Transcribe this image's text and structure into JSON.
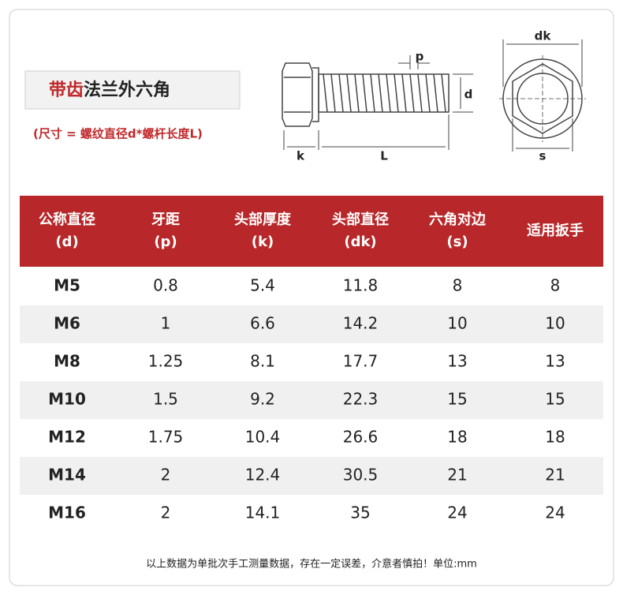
{
  "header": {
    "title_highlight": "带齿",
    "title_rest": "法兰外六角",
    "subtitle": "(尺寸 = 螺纹直径d*螺杆长度L)"
  },
  "diagram": {
    "side_labels": {
      "p": "p",
      "d": "d",
      "k": "k",
      "L": "L"
    },
    "front_labels": {
      "dk": "dk",
      "s": "s"
    }
  },
  "table": {
    "columns": [
      [
        "公称直径",
        "(d)"
      ],
      [
        "牙距",
        "(p)"
      ],
      [
        "头部厚度",
        "(k)"
      ],
      [
        "头部直径",
        "(dk)"
      ],
      [
        "六角对边",
        "(s)"
      ],
      [
        "适用扳手"
      ]
    ],
    "rows": [
      [
        "M5",
        "0.8",
        "5.4",
        "11.8",
        "8",
        "8"
      ],
      [
        "M6",
        "1",
        "6.6",
        "14.2",
        "10",
        "10"
      ],
      [
        "M8",
        "1.25",
        "8.1",
        "17.7",
        "13",
        "13"
      ],
      [
        "M10",
        "1.5",
        "9.2",
        "22.3",
        "15",
        "15"
      ],
      [
        "M12",
        "1.75",
        "10.4",
        "26.6",
        "18",
        "18"
      ],
      [
        "M14",
        "2",
        "12.4",
        "30.5",
        "21",
        "21"
      ],
      [
        "M16",
        "2",
        "14.1",
        "35",
        "24",
        "24"
      ]
    ]
  },
  "footer": {
    "note": "以上数据为单批次手工测量数据，存在一定误差，介意者慎拍！单位:mm"
  }
}
